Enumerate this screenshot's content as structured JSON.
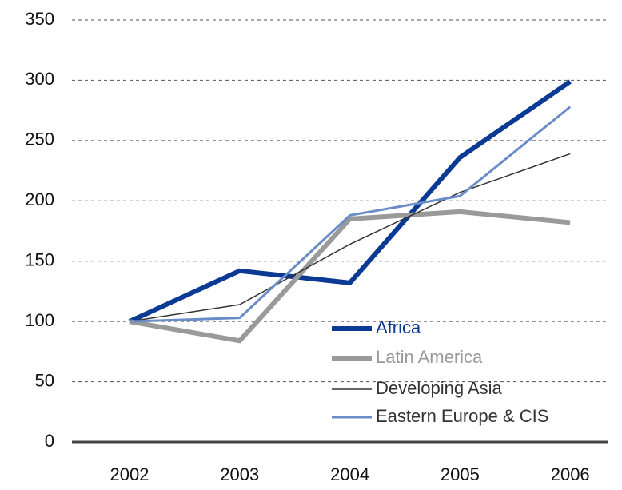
{
  "chart_data": {
    "type": "line",
    "categories": [
      "2002",
      "2003",
      "2004",
      "2005",
      "2006"
    ],
    "series": [
      {
        "name": "Africa",
        "color": "#0b3a94",
        "width": 6,
        "values": [
          100,
          142,
          132,
          236,
          299
        ]
      },
      {
        "name": "Latin America",
        "color": "#9a9a9a",
        "width": 6,
        "values": [
          100,
          84,
          185,
          191,
          182
        ]
      },
      {
        "name": "Developing Asia",
        "color": "#333333",
        "width": 1.5,
        "values": [
          100,
          114,
          164,
          207,
          239
        ]
      },
      {
        "name": "Eastern Europe & CIS",
        "color": "#6a8cc8",
        "width": 3,
        "values": [
          100,
          103,
          188,
          204,
          278
        ]
      }
    ],
    "ylim": [
      0,
      350
    ],
    "yticks": [
      0,
      50,
      100,
      150,
      200,
      250,
      300,
      350
    ],
    "grid": true
  }
}
